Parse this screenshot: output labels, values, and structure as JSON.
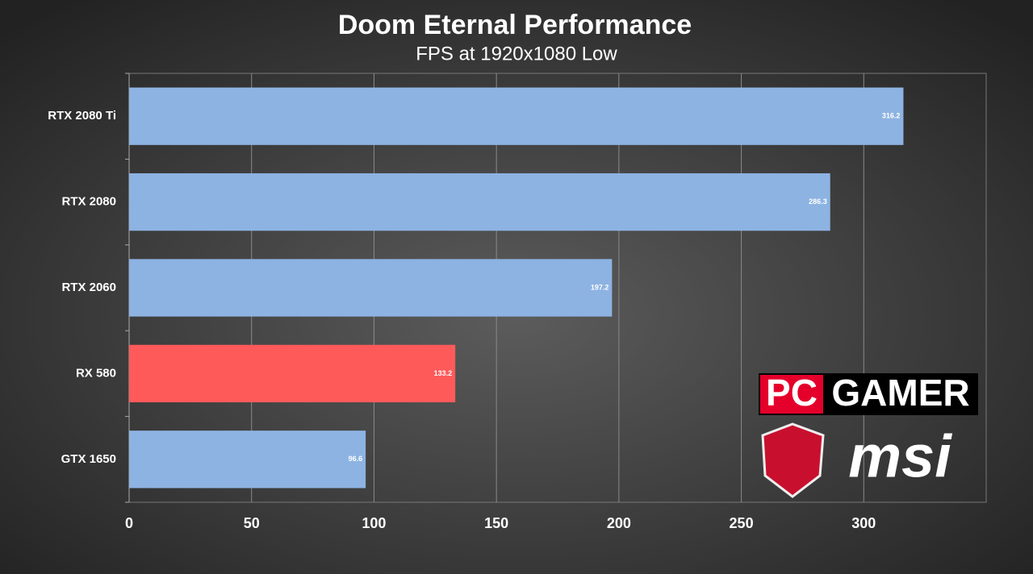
{
  "chart_data": {
    "type": "hbar",
    "title": "Doom Eternal Performance",
    "subtitle": "FPS at 1920x1080 Low",
    "categories": [
      "RTX 2080 Ti",
      "RTX 2080",
      "RTX 2060",
      "RX 580",
      "GTX 1650"
    ],
    "values": [
      316.2,
      286.3,
      197.2,
      133.2,
      96.6
    ],
    "colors": [
      "#8db3e2",
      "#8db3e2",
      "#8db3e2",
      "#ff5a5a",
      "#8db3e2"
    ],
    "xlim": [
      0,
      350
    ],
    "xticks": [
      0,
      50,
      100,
      150,
      200,
      250,
      300
    ],
    "grid": true,
    "watermark": {
      "pc": "PC",
      "gamer": "GAMER",
      "msi": "msi"
    }
  }
}
